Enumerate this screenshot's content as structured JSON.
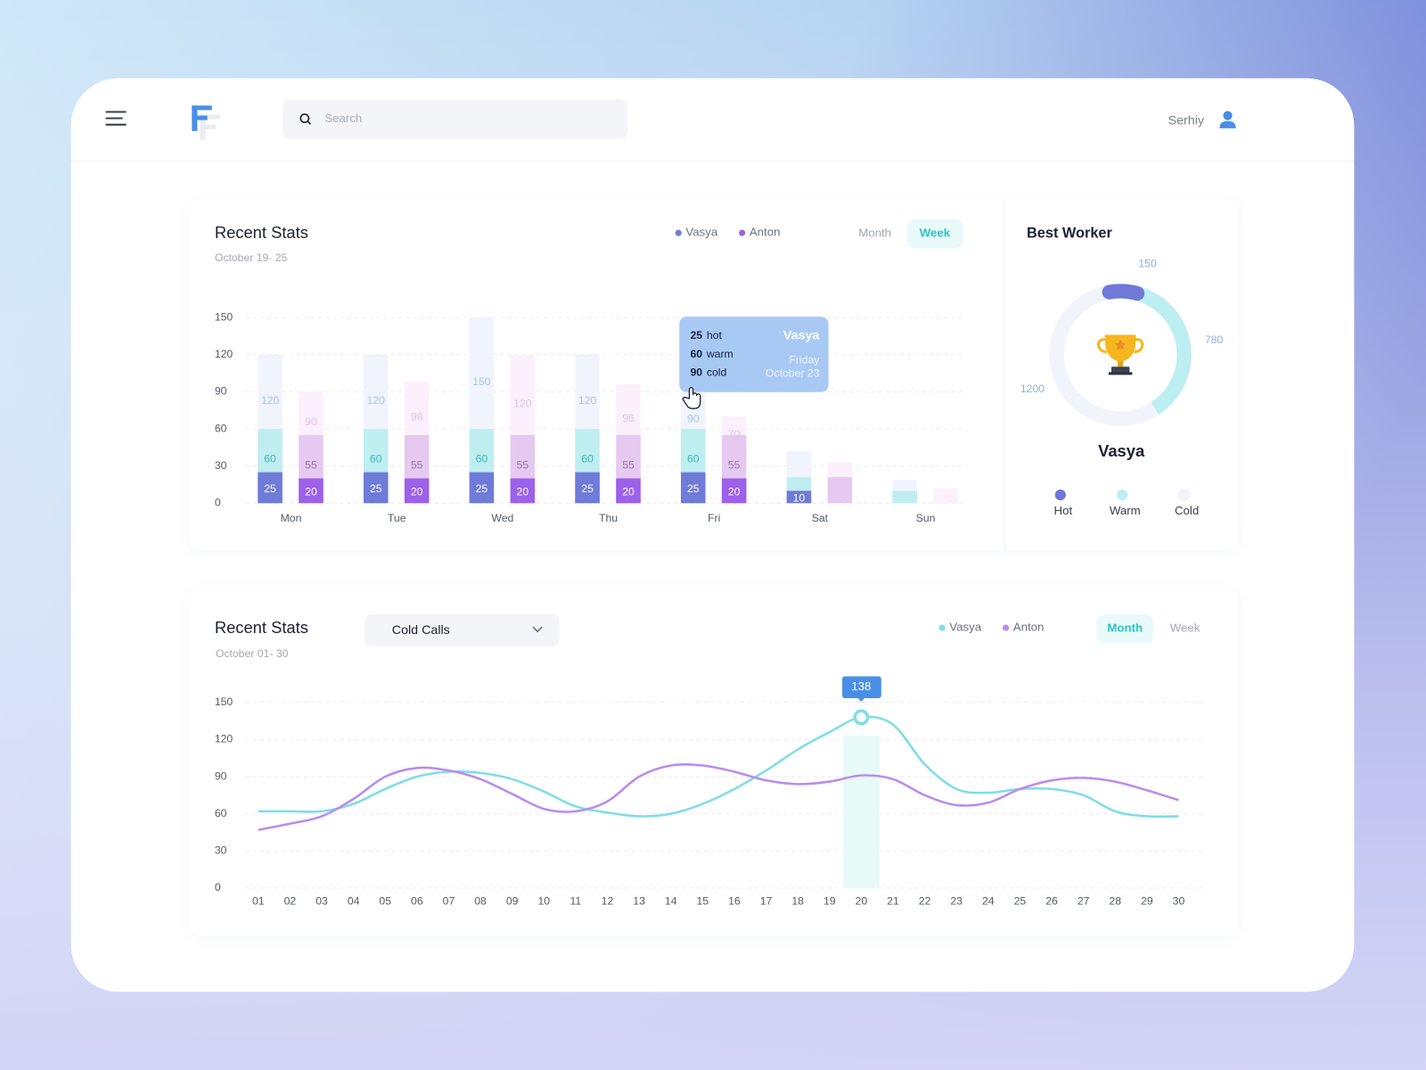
{
  "header": {
    "search_placeholder": "Search",
    "user": "Serhiy"
  },
  "bar_chart": {
    "type": "bar",
    "title": "Recent Stats",
    "subtitle": "October 19- 25",
    "toggles": [
      {
        "label": "Month",
        "active": false
      },
      {
        "label": "Week",
        "active": true
      }
    ],
    "categories": [
      "Mon",
      "Tue",
      "Wed",
      "Thu",
      "Fri",
      "Sat",
      "Sun"
    ],
    "ylim": [
      0,
      150
    ],
    "yticks": [
      0,
      30,
      60,
      90,
      120,
      150
    ],
    "grid": true,
    "series": [
      {
        "name": "Vasya",
        "color": "#6f7bd8",
        "levels": [
          {
            "values": [
              25,
              25,
              25,
              25,
              25,
              10,
              null
            ],
            "color": "#6f7bd8",
            "label_color": "#ffffff",
            "value_labels": [
              "25",
              "25",
              "25",
              "25",
              "25",
              "10",
              null
            ]
          },
          {
            "values": [
              60,
              60,
              60,
              60,
              60,
              21,
              10
            ],
            "color": "#bfeef1",
            "label_color": "#3fb7b9",
            "value_labels": [
              "60",
              "60",
              "60",
              "60",
              "60",
              null,
              null
            ]
          },
          {
            "values": [
              120,
              120,
              150,
              120,
              90,
              42,
              19
            ],
            "color": "#f1f4fd",
            "label_color": "#a9c1ec",
            "value_labels": [
              "120",
              "120",
              "150",
              "120",
              "90",
              null,
              null
            ]
          }
        ]
      },
      {
        "name": "Anton",
        "color": "#9d60ea",
        "levels": [
          {
            "values": [
              20,
              20,
              20,
              20,
              20,
              null,
              null
            ],
            "color": "#9d60ea",
            "label_color": "#ffffff",
            "value_labels": [
              "20",
              "20",
              "20",
              "20",
              "20",
              null,
              null
            ]
          },
          {
            "values": [
              55,
              55,
              55,
              55,
              55,
              21,
              null
            ],
            "color": "#e6c9f0",
            "label_color": "#9a77b3",
            "value_labels": [
              "55",
              "55",
              "55",
              "55",
              "55",
              null,
              null
            ]
          },
          {
            "values": [
              90,
              98,
              120,
              96,
              70,
              33,
              12
            ],
            "color": "#fbf0fc",
            "label_color": "#dfc0ea",
            "value_labels": [
              "90",
              "98",
              "120",
              "96",
              "70",
              null,
              null
            ]
          }
        ]
      }
    ],
    "tooltip": {
      "name": "Vasya",
      "day": "Friday",
      "date": "October 23",
      "lines": [
        {
          "value": 25,
          "label": "hot"
        },
        {
          "value": 60,
          "label": "warm"
        },
        {
          "value": 90,
          "label": "cold"
        }
      ]
    }
  },
  "donut": {
    "type": "donut",
    "title": "Best Worker",
    "name": "Vasya",
    "categories": [
      "Hot",
      "Warm",
      "Cold"
    ],
    "values": [
      150,
      780,
      1200
    ],
    "colors": [
      "#7079d8",
      "#bdeef1",
      "#f1f4fb"
    ]
  },
  "line_chart": {
    "type": "line",
    "title": "Recent Stats",
    "subtitle": "October 01- 30",
    "dropdown": "Cold Calls",
    "toggles": [
      {
        "label": "Month",
        "active": true
      },
      {
        "label": "Week",
        "active": false
      }
    ],
    "categories": [
      "01",
      "02",
      "03",
      "04",
      "05",
      "06",
      "07",
      "08",
      "09",
      "10",
      "11",
      "12",
      "13",
      "14",
      "15",
      "16",
      "17",
      "18",
      "19",
      "20",
      "21",
      "22",
      "23",
      "24",
      "25",
      "26",
      "27",
      "28",
      "29",
      "30"
    ],
    "ylim": [
      0,
      150
    ],
    "yticks": [
      0,
      30,
      60,
      90,
      120,
      150
    ],
    "grid": true,
    "series": [
      {
        "name": "Vasya",
        "color": "#7fdde6",
        "values": [
          62,
          62,
          62,
          68,
          80,
          90,
          94,
          93,
          88,
          78,
          66,
          61,
          58,
          60,
          68,
          80,
          95,
          112,
          126,
          138,
          132,
          100,
          80,
          77,
          80,
          80,
          75,
          62,
          58,
          58
        ],
        "value_labels": [
          null,
          null,
          null,
          null,
          null,
          null,
          null,
          null,
          null,
          null,
          null,
          null,
          null,
          null,
          null,
          null,
          null,
          null,
          null,
          "138",
          null,
          null,
          null,
          null,
          null,
          null,
          null,
          null,
          null,
          null
        ]
      },
      {
        "name": "Anton",
        "color": "#b98cf0",
        "values": [
          47,
          52,
          58,
          72,
          90,
          97,
          95,
          88,
          76,
          64,
          62,
          70,
          90,
          99,
          99,
          94,
          87,
          84,
          86,
          91,
          88,
          75,
          67,
          69,
          80,
          87,
          89,
          86,
          79,
          71
        ]
      }
    ]
  }
}
